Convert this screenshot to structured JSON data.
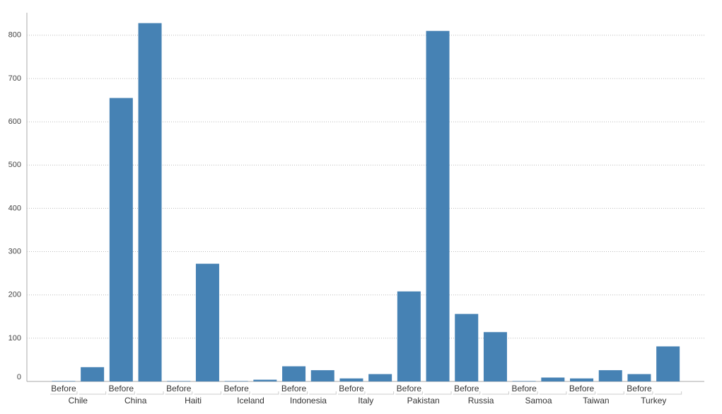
{
  "chart_data": {
    "type": "bar",
    "groups": [
      "Chile",
      "China",
      "Haiti",
      "Iceland",
      "Indonesia",
      "Italy",
      "Pakistan",
      "Russia",
      "Samoa",
      "Taiwan",
      "Turkey"
    ],
    "categories": [
      "Before",
      null,
      "Before",
      null,
      "Before",
      null,
      "Before",
      null,
      "Before",
      null,
      "Before",
      null,
      "Before",
      null,
      "Before",
      null,
      "Before",
      null,
      "Before",
      null,
      "Before",
      null
    ],
    "values": [
      1,
      33,
      655,
      828,
      1,
      272,
      1,
      4,
      35,
      26,
      7,
      17,
      208,
      810,
      156,
      114,
      1,
      9,
      7,
      26,
      17,
      81
    ],
    "color": "#4682b4",
    "ylim": [
      0,
      852
    ],
    "yticks": [
      0,
      100,
      200,
      300,
      400,
      500,
      600,
      700,
      800
    ],
    "grid": true
  }
}
